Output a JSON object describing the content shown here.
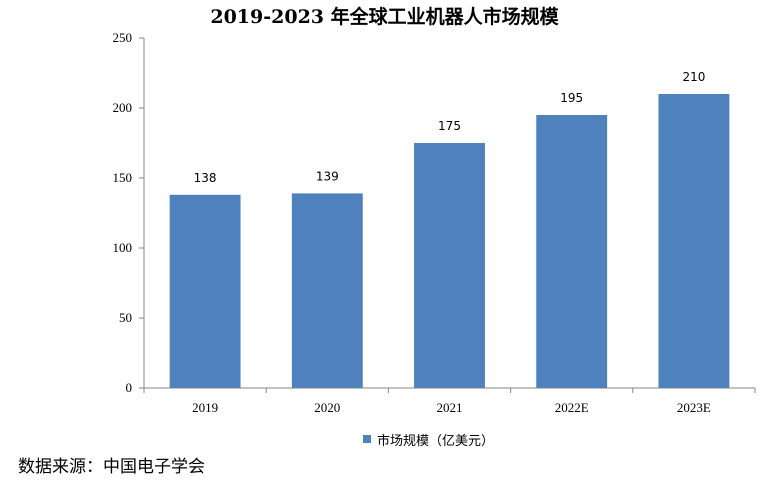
{
  "chart_data": {
    "type": "bar",
    "title": "2019-2023 年全球工业机器人市场规模",
    "categories": [
      "2019",
      "2020",
      "2021",
      "2022E",
      "2023E"
    ],
    "series": [
      {
        "name": "市场规模（亿美元）",
        "values": [
          138,
          139,
          175,
          195,
          210
        ],
        "color": "#4f81bd"
      }
    ],
    "data_labels": [
      "138",
      "139",
      "175",
      "195",
      "210"
    ],
    "ylim": [
      0,
      250
    ],
    "yticks": [
      0,
      50,
      100,
      150,
      200,
      250
    ],
    "ytick_labels": [
      "0",
      "50",
      "100",
      "150",
      "200",
      "250"
    ],
    "grid": false,
    "legend_position": "bottom-center",
    "xlabel": "",
    "ylabel": ""
  },
  "source_note": "数据来源：中国电子学会"
}
